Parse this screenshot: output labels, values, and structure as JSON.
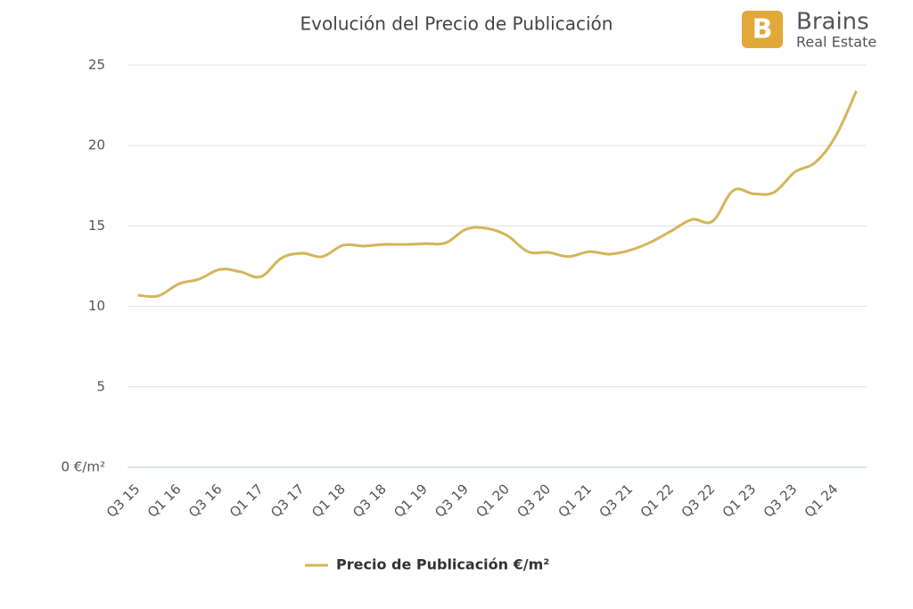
{
  "chart_data": {
    "type": "line",
    "title": "Evolución del Precio de Publicación",
    "logo": {
      "name": "Brains",
      "tagline": "Real Estate"
    },
    "categories": [
      "Q3 15",
      null,
      "Q1 16",
      null,
      "Q3 16",
      null,
      "Q1 17",
      null,
      "Q3 17",
      null,
      "Q1 18",
      null,
      "Q3 18",
      null,
      "Q1 19",
      null,
      "Q3 19",
      null,
      "Q1 20",
      null,
      "Q3 20",
      null,
      "Q1 21",
      null,
      "Q3 21",
      null,
      "Q1 22",
      null,
      "Q3 22",
      null,
      "Q1 23",
      null,
      "Q3 23",
      null,
      "Q1 24",
      null
    ],
    "series": [
      {
        "name": "Precio de Publicación €/m²",
        "color": "#d4b55a",
        "values": [
          10.7,
          10.65,
          11.4,
          11.7,
          12.3,
          12.15,
          11.85,
          13.0,
          13.3,
          13.1,
          13.8,
          13.75,
          13.85,
          13.85,
          13.9,
          13.95,
          14.8,
          14.85,
          14.4,
          13.4,
          13.35,
          13.1,
          13.4,
          13.25,
          13.5,
          14.0,
          14.7,
          15.4,
          15.3,
          17.2,
          17.0,
          17.1,
          18.35,
          18.95,
          20.6,
          23.4
        ]
      }
    ],
    "ylim": [
      0,
      25
    ],
    "yticks": [
      {
        "value": 0,
        "label": "0 €/m²"
      },
      5,
      10,
      15,
      20,
      25
    ],
    "grid": true,
    "legend": "bottom"
  }
}
